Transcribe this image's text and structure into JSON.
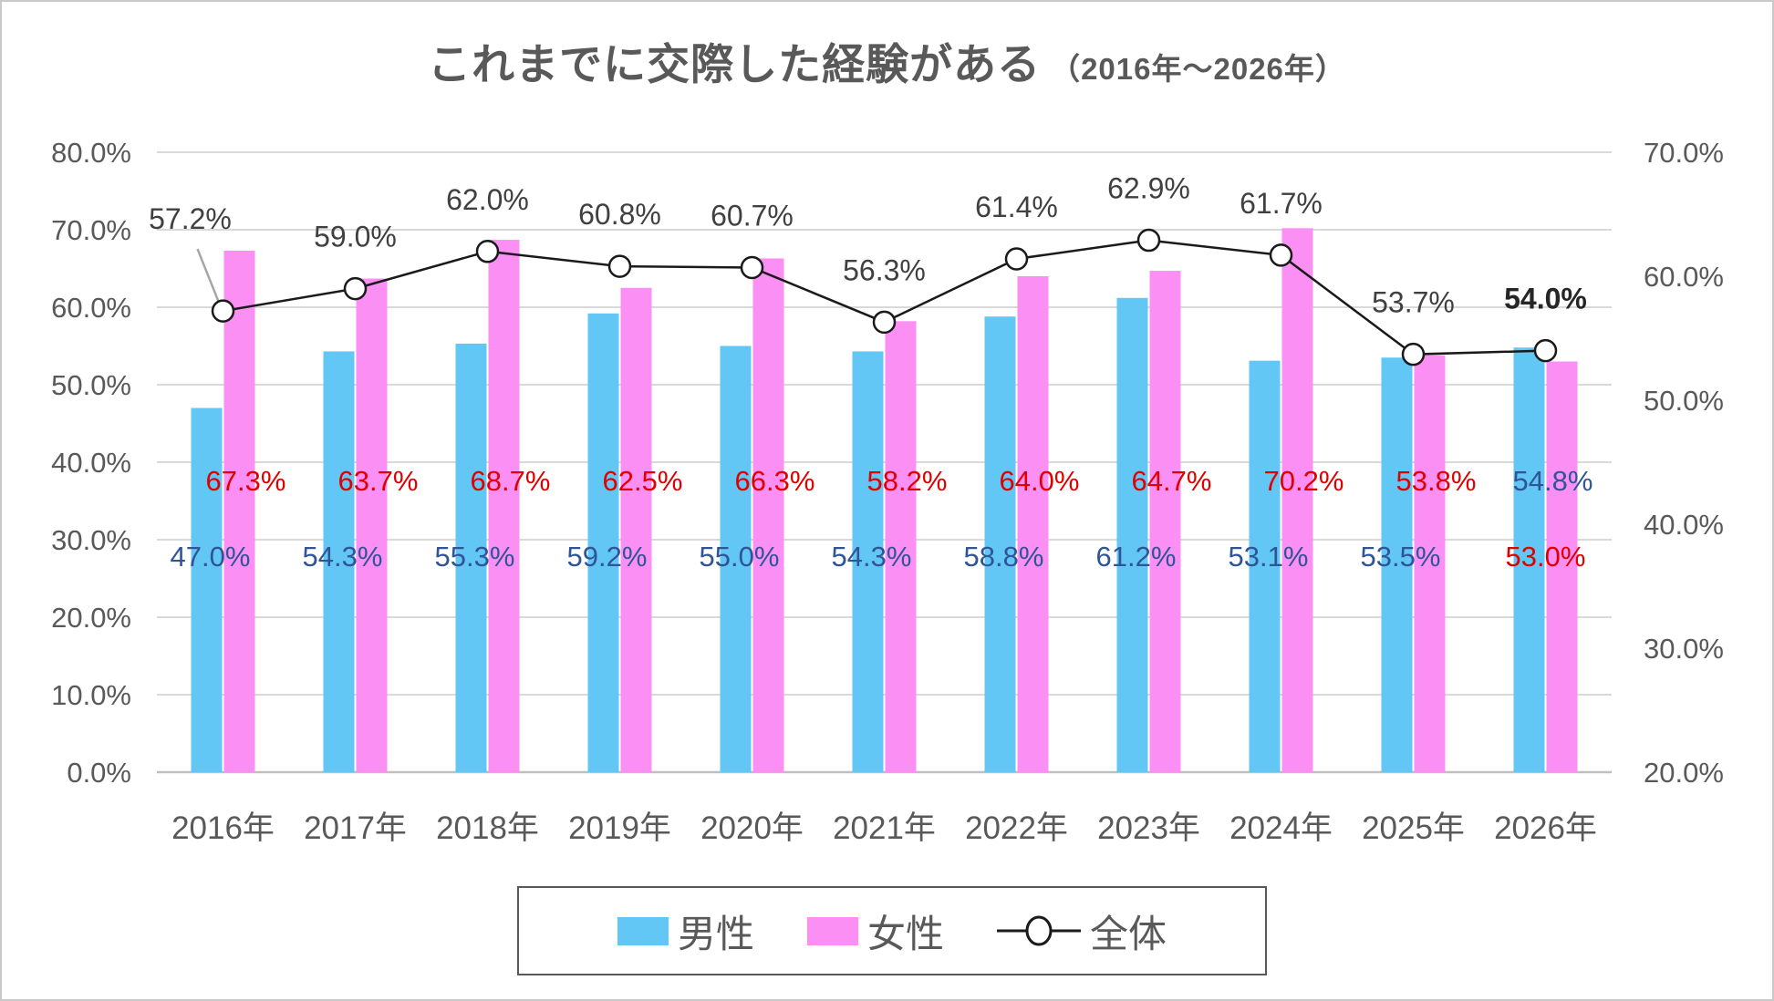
{
  "title": {
    "main": "これまでに交際した経験がある",
    "sub": "（2016年～2026年）"
  },
  "chart_data": {
    "type": "combo-bar-line",
    "title": "これまでに交際した経験がある（2016年～2026年）",
    "categories": [
      "2016年",
      "2017年",
      "2018年",
      "2019年",
      "2020年",
      "2021年",
      "2022年",
      "2023年",
      "2024年",
      "2025年",
      "2026年"
    ],
    "series": [
      {
        "name": "男性",
        "type": "bar",
        "axis": "left",
        "color": "#62C7F5",
        "label_color": "#2F5597",
        "values": [
          47.0,
          54.3,
          55.3,
          59.2,
          55.0,
          54.3,
          58.8,
          61.2,
          53.1,
          53.5,
          54.8
        ]
      },
      {
        "name": "女性",
        "type": "bar",
        "axis": "left",
        "color": "#FB8FF4",
        "label_color": "#E00000",
        "values": [
          67.3,
          63.7,
          68.7,
          62.5,
          66.3,
          58.2,
          64.0,
          64.7,
          70.2,
          53.8,
          53.0
        ]
      },
      {
        "name": "全体",
        "type": "line",
        "axis": "right",
        "color": "#1A1A1A",
        "label_color": "#404040",
        "marker": "circle-open",
        "last_label_bold": true,
        "values": [
          57.2,
          59.0,
          62.0,
          60.8,
          60.7,
          56.3,
          61.4,
          62.9,
          61.7,
          53.7,
          54.0
        ]
      }
    ],
    "left_axis": {
      "min": 0,
      "max": 80,
      "step": 10,
      "ticks": [
        "80.0%",
        "70.0%",
        "60.0%",
        "50.0%",
        "40.0%",
        "30.0%",
        "20.0%",
        "10.0%",
        "0.0%"
      ]
    },
    "right_axis": {
      "min": 20,
      "max": 70,
      "step": 10,
      "ticks": [
        "70.0%",
        "60.0%",
        "50.0%",
        "40.0%",
        "30.0%",
        "20.0%"
      ]
    },
    "grid": true,
    "gridline_color": "#D9D9D9",
    "baseline_color": "#BFBFBF",
    "leader_line_color": "#A6A6A6",
    "axis_text_color": "#595959",
    "legend_position": "bottom"
  },
  "legend": {
    "items": [
      {
        "label": "男性",
        "kind": "bar",
        "color": "#62C7F5"
      },
      {
        "label": "女性",
        "kind": "bar",
        "color": "#FB8FF4"
      },
      {
        "label": "全体",
        "kind": "line",
        "color": "#1A1A1A"
      }
    ]
  }
}
